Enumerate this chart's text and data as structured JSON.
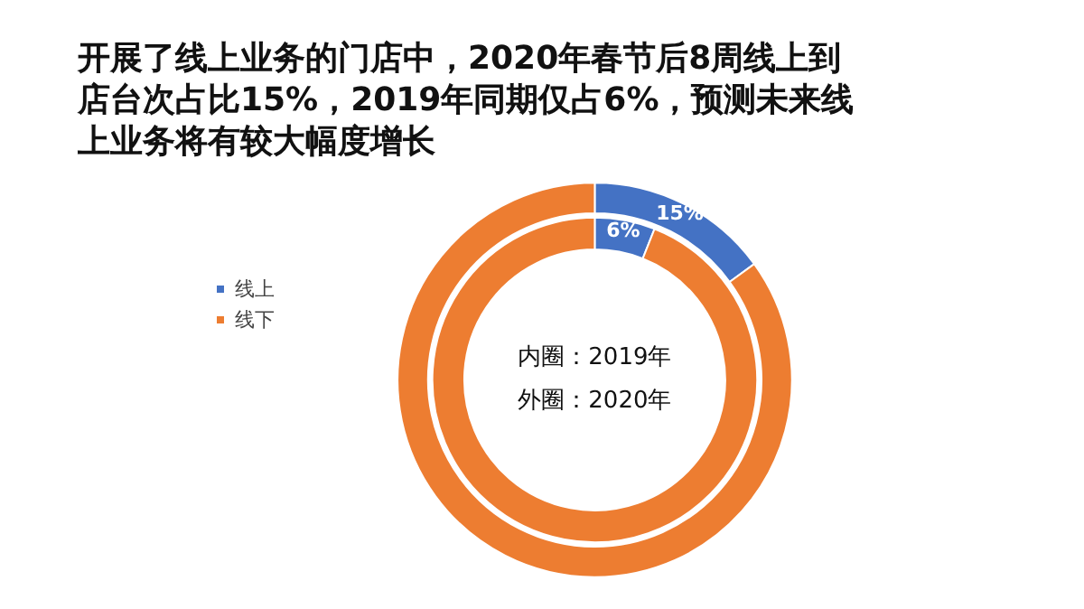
{
  "chart_data": {
    "type": "donut",
    "title": "开展了线上业务的门店中，2020年春节后8周线上到店台次占比15%，2019年同期仅占6%，预测未来线上业务将有较大幅度增长",
    "categories": [
      "线上",
      "线下"
    ],
    "colors": [
      "#4472c4",
      "#ed7d31"
    ],
    "series": [
      {
        "values": [
          6,
          94
        ],
        "value_labels": [
          "6%",
          null
        ]
      },
      {
        "values": [
          15,
          85
        ],
        "value_labels": [
          "15%",
          null
        ]
      }
    ],
    "annotations": [
      "内圈：2019年",
      "外圈：2020年"
    ],
    "legend": "left"
  }
}
